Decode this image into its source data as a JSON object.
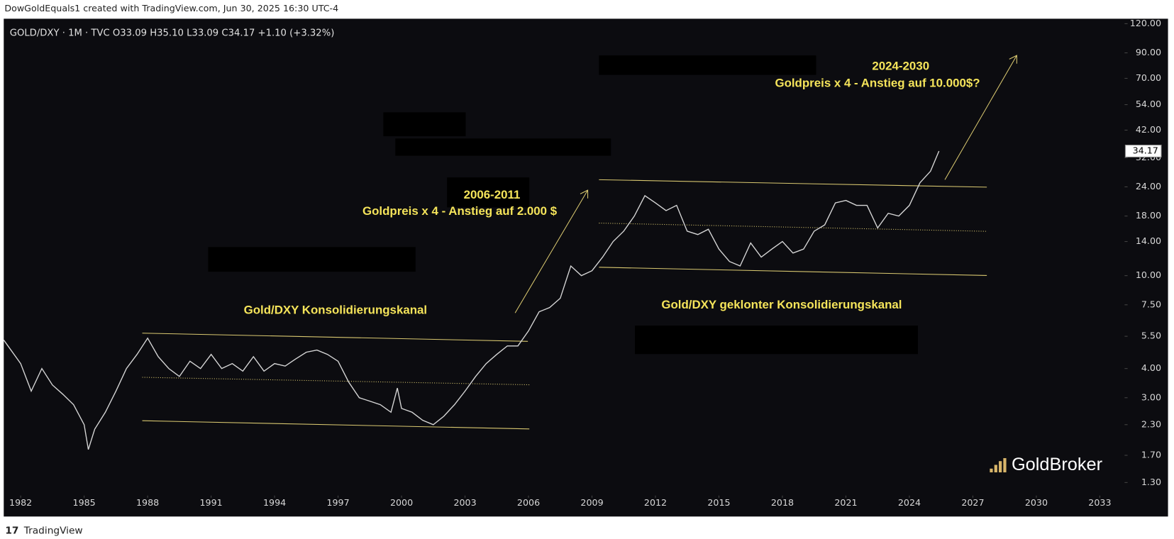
{
  "header": {
    "credit": "DowGoldEquals1 created with TradingView.com, Jun 30, 2025 16:30 UTC-4"
  },
  "footer": {
    "brand": "TradingView",
    "watermark": "GoldBroker"
  },
  "chart_data": {
    "type": "line",
    "title": "GOLD/DXY · 1M · TVC  O33.09  H35.10  L33.09  C34.17  +1.10 (+3.32%)",
    "log_scale": true,
    "color": "#d6d6d6",
    "last_price": 34.17,
    "annotations": [
      "2024-2030",
      "Goldpreis x 4 - Anstieg auf 10.000$?",
      "2006-2011",
      "Goldpreis x 4 - Anstieg auf 2.000 $",
      "Gold/DXY Konsolidierungskanal",
      "Gold/DXY geklonter Konsolidierungskanal"
    ],
    "x": [
      1981.2,
      1982,
      1982.5,
      1983,
      1983.5,
      1984,
      1984.5,
      1985,
      1985.2,
      1985.5,
      1986,
      1986.5,
      1987,
      1987.5,
      1988,
      1988.5,
      1989,
      1989.5,
      1990,
      1990.5,
      1991,
      1991.5,
      1992,
      1992.5,
      1993,
      1993.5,
      1994,
      1994.5,
      1995,
      1995.5,
      1996,
      1996.5,
      1997,
      1997.5,
      1998,
      1998.5,
      1999,
      1999.5,
      1999.8,
      2000,
      2000.5,
      2001,
      2001.5,
      2002,
      2002.5,
      2003,
      2003.5,
      2004,
      2004.5,
      2005,
      2005.5,
      2006,
      2006.5,
      2007,
      2007.5,
      2008,
      2008.5,
      2009,
      2009.5,
      2010,
      2010.5,
      2011,
      2011.5,
      2012,
      2012.5,
      2013,
      2013.5,
      2014,
      2014.5,
      2015,
      2015.5,
      2016,
      2016.5,
      2017,
      2017.5,
      2018,
      2018.5,
      2019,
      2019.5,
      2020,
      2020.5,
      2021,
      2021.5,
      2022,
      2022.5,
      2023,
      2023.5,
      2024,
      2024.5,
      2025,
      2025.4
    ],
    "values": [
      5.3,
      4.2,
      3.2,
      4.0,
      3.4,
      3.1,
      2.8,
      2.3,
      1.8,
      2.2,
      2.6,
      3.2,
      4.0,
      4.6,
      5.4,
      4.5,
      4.0,
      3.7,
      4.3,
      4.0,
      4.6,
      4.0,
      4.2,
      3.9,
      4.5,
      3.9,
      4.2,
      4.1,
      4.4,
      4.7,
      4.8,
      4.6,
      4.3,
      3.5,
      3.0,
      2.9,
      2.8,
      2.6,
      3.3,
      2.7,
      2.6,
      2.4,
      2.3,
      2.5,
      2.8,
      3.2,
      3.7,
      4.2,
      4.6,
      5.0,
      5.0,
      5.8,
      7.0,
      7.3,
      8.0,
      11.0,
      10.0,
      10.5,
      12.0,
      14.0,
      15.5,
      18.0,
      22.0,
      20.5,
      19.0,
      20.0,
      15.5,
      15.0,
      15.8,
      13.0,
      11.5,
      11.0,
      13.8,
      12.0,
      13.0,
      14.0,
      12.5,
      13.0,
      15.5,
      16.5,
      20.5,
      21.0,
      20.0,
      20.0,
      16.0,
      18.5,
      18.0,
      20.0,
      25.0,
      28.0,
      34.17
    ],
    "xlim": [
      1981.2,
      2034.1
    ],
    "xticks": [
      1982,
      1985,
      1988,
      1991,
      1994,
      1997,
      2000,
      2003,
      2006,
      2009,
      2012,
      2015,
      2018,
      2021,
      2024,
      2027,
      2030,
      2033
    ],
    "ylim": [
      1.16,
      126
    ],
    "yticks": [
      {
        "value": 1.3,
        "label": "1.30"
      },
      {
        "value": 1.7,
        "label": "1.70"
      },
      {
        "value": 2.3,
        "label": "2.30"
      },
      {
        "value": 3,
        "label": "3.00"
      },
      {
        "value": 4,
        "label": "4.00"
      },
      {
        "value": 5.5,
        "label": "5.50"
      },
      {
        "value": 7.5,
        "label": "7.50"
      },
      {
        "value": 10,
        "label": "10.00"
      },
      {
        "value": 14,
        "label": "14.00"
      },
      {
        "value": 18,
        "label": "18.00"
      },
      {
        "value": 24,
        "label": "24.00"
      },
      {
        "value": 32,
        "label": "32.00"
      },
      {
        "value": 42,
        "label": "42.00"
      },
      {
        "value": 54,
        "label": "54.00"
      },
      {
        "value": 70,
        "label": "70.00"
      },
      {
        "value": 90,
        "label": "90.00"
      },
      {
        "value": 120,
        "label": "120.00"
      }
    ]
  }
}
